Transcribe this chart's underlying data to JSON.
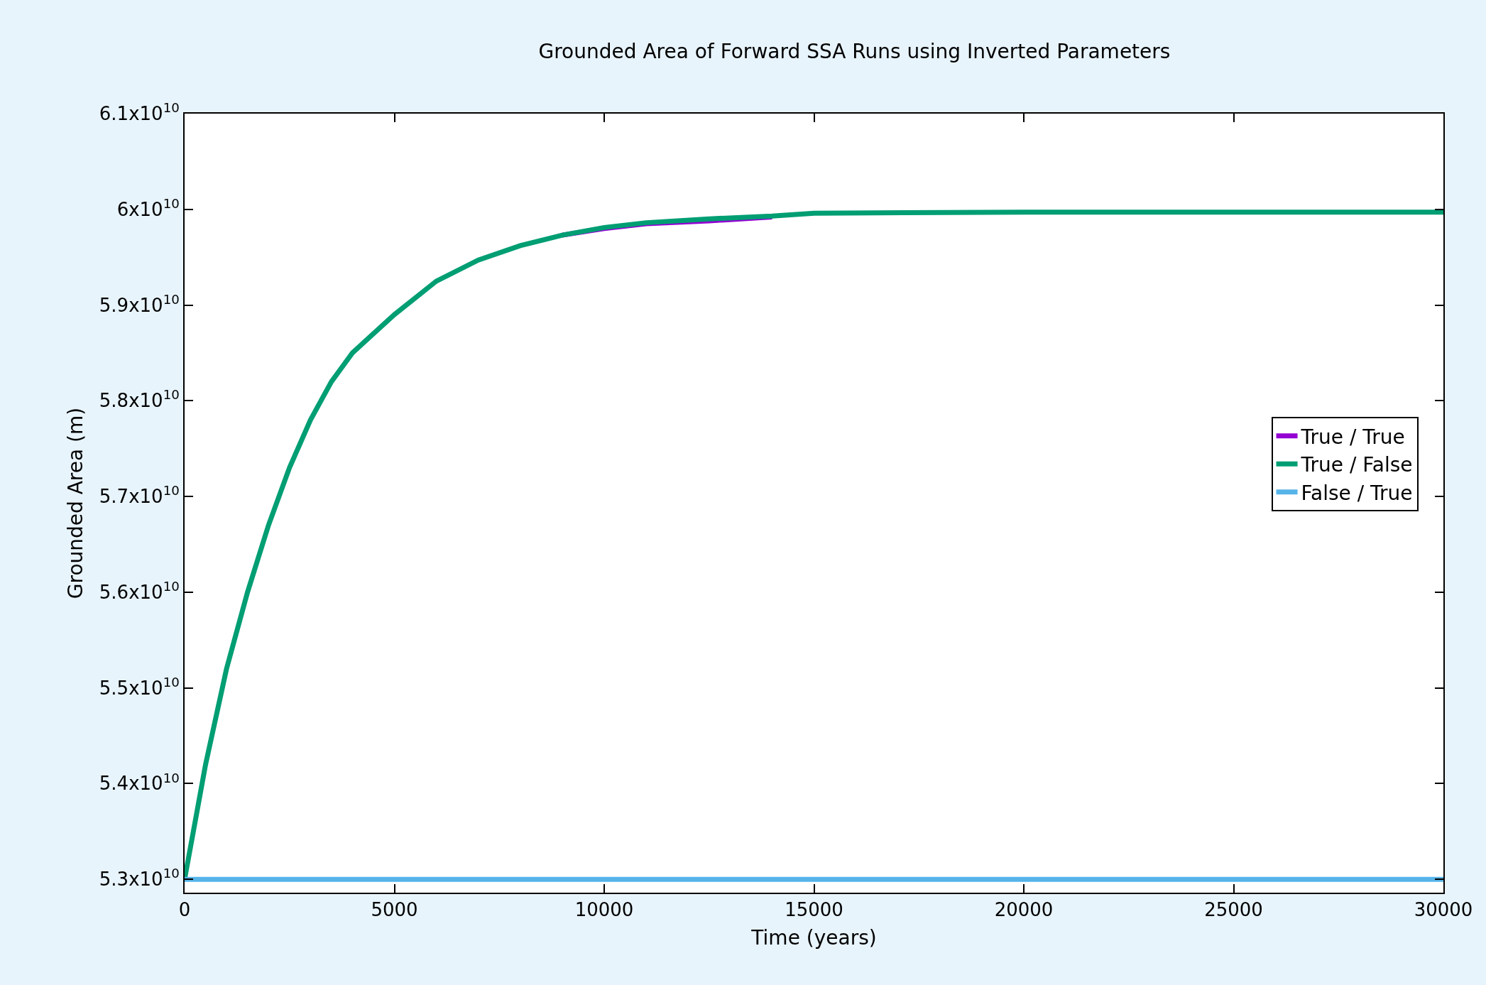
{
  "chart_data": {
    "type": "line",
    "title": "Grounded Area of Forward SSA Runs using Inverted Parameters",
    "xlabel": "Time (years)",
    "ylabel": "Grounded Area (m)",
    "x": [
      0,
      250,
      500,
      1000,
      1500,
      2000,
      2500,
      3000,
      3500,
      4000,
      5000,
      6000,
      7000,
      8000,
      9000,
      10000,
      11000,
      12500,
      14000,
      15000,
      20000,
      30000
    ],
    "series": [
      {
        "name": "True / True",
        "color": "#9400d3",
        "values": [
          null,
          null,
          null,
          null,
          null,
          null,
          null,
          null,
          null,
          null,
          null,
          null,
          null,
          null,
          59730000000,
          59800000000,
          59850000000,
          59880000000,
          59920000000,
          null,
          null,
          null
        ]
      },
      {
        "name": "True / False",
        "color": "#009e73",
        "values": [
          53000000000,
          53600000000,
          54200000000,
          55200000000,
          56000000000,
          56700000000,
          57300000000,
          57800000000,
          58200000000,
          58500000000,
          58900000000,
          59250000000,
          59470000000,
          59620000000,
          59730000000,
          59810000000,
          59860000000,
          59900000000,
          59930000000,
          59960000000,
          59970000000,
          59970000000
        ]
      },
      {
        "name": "False / True",
        "color": "#56b4e9",
        "x": [
          0,
          30000
        ],
        "values": [
          53000000000,
          53000000000
        ]
      }
    ],
    "xlim": [
      0,
      30000
    ],
    "xticks": [
      0,
      5000,
      10000,
      15000,
      20000,
      25000,
      30000
    ],
    "ylim": [
      52860000000,
      61000000000
    ],
    "yticks": [
      {
        "value": 53000000000,
        "label": "5.3x10$^{10}$"
      },
      {
        "value": 54000000000,
        "label": "5.4x10$^{10}$"
      },
      {
        "value": 55000000000,
        "label": "5.5x10$^{10}$"
      },
      {
        "value": 56000000000,
        "label": "5.6x10$^{10}$"
      },
      {
        "value": 57000000000,
        "label": "5.7x10$^{10}$"
      },
      {
        "value": 58000000000,
        "label": "5.8x10$^{10}$"
      },
      {
        "value": 59000000000,
        "label": "5.9x10$^{10}$"
      },
      {
        "value": 60000000000,
        "label": "6x10$^{10}$"
      },
      {
        "value": 61000000000,
        "label": "6.1x10$^{10}$"
      }
    ],
    "legend": "right",
    "marker": "none",
    "line_style": "solid"
  }
}
